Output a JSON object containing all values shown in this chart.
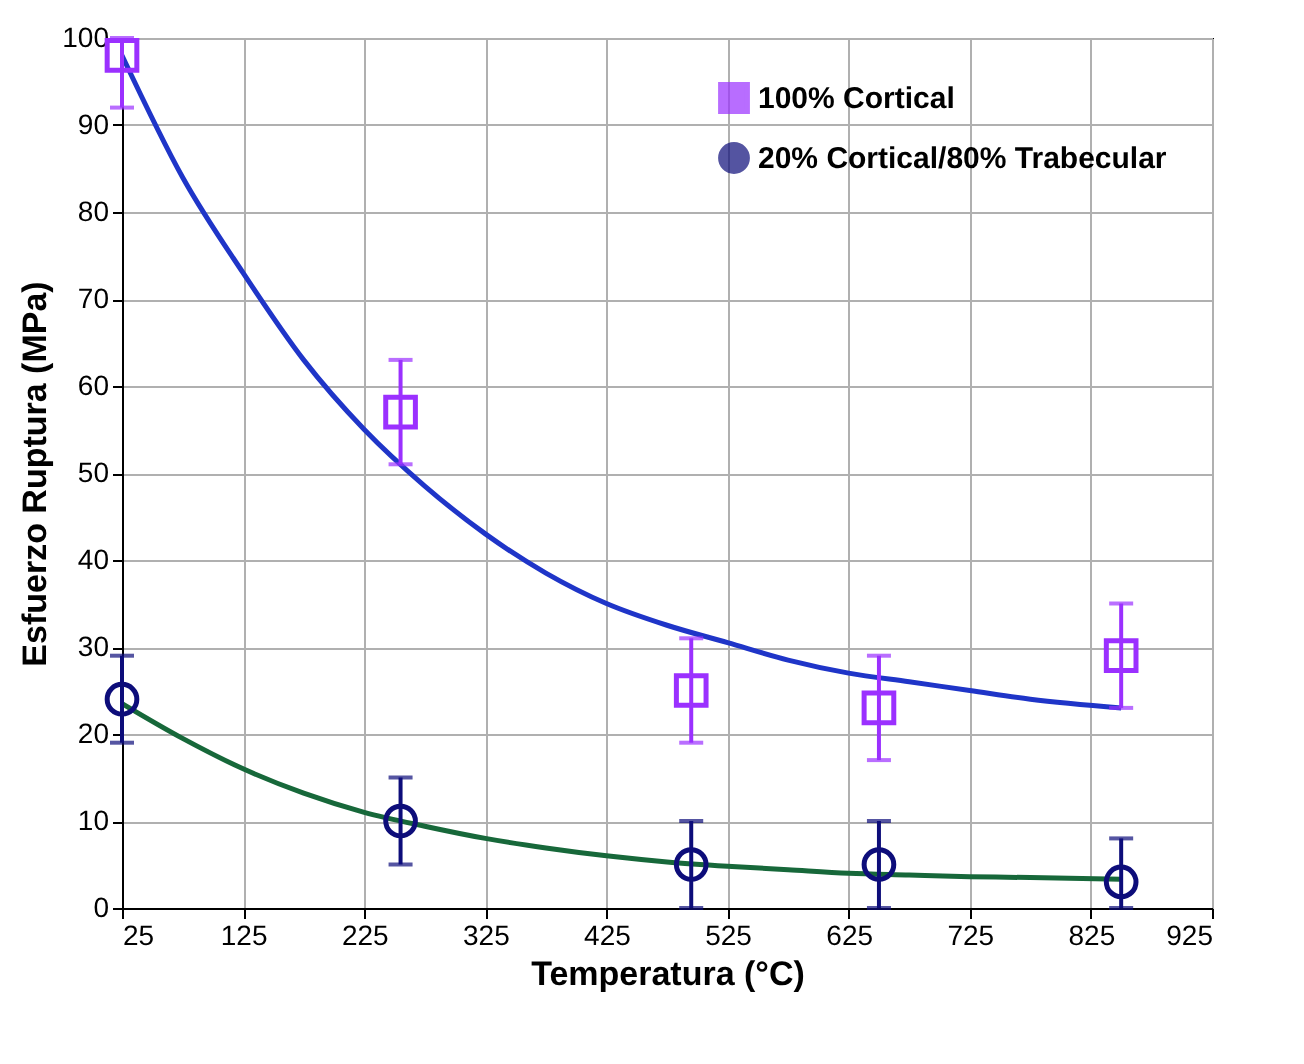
{
  "chart_data": {
    "type": "scatter",
    "xlabel": "Temperatura   (°C)",
    "ylabel": "Esfuerzo Ruptura  (MPa)",
    "xlim": [
      25,
      925
    ],
    "xticks": [
      25,
      125,
      225,
      325,
      425,
      525,
      625,
      725,
      825,
      925
    ],
    "ylim": [
      0,
      100
    ],
    "yticks": [
      0,
      10,
      20,
      30,
      40,
      50,
      60,
      70,
      80,
      90,
      100
    ],
    "grid": true,
    "legend": "top right",
    "series": [
      {
        "name": "100% Cortical",
        "color": "#9b30ff",
        "marker": "square",
        "x": [
          25,
          255,
          495,
          650,
          850
        ],
        "values": [
          98,
          57,
          25,
          23,
          29
        ],
        "errors": [
          [
            92,
            100
          ],
          [
            51,
            63
          ],
          [
            19,
            31
          ],
          [
            17,
            29
          ],
          [
            23,
            35
          ]
        ]
      },
      {
        "name": "20% Cortical/80% Trabecular",
        "color": "#0d0d7a",
        "marker": "circle",
        "x": [
          25,
          255,
          495,
          650,
          850
        ],
        "values": [
          24,
          10,
          5,
          5,
          3
        ],
        "errors": [
          [
            19,
            29
          ],
          [
            5,
            15
          ],
          [
            0,
            10
          ],
          [
            0,
            10
          ],
          [
            0,
            8
          ]
        ]
      },
      {
        "type": "line",
        "color": "#1f35c8",
        "x": [
          25,
          75,
          125,
          175,
          225,
          275,
          325,
          375,
          425,
          475,
          525,
          575,
          625,
          675,
          725,
          775,
          850
        ],
        "values": [
          98,
          84,
          73,
          63,
          55,
          48.5,
          43,
          38.5,
          35,
          32.5,
          30.5,
          28.5,
          27,
          26,
          25,
          24,
          23
        ]
      },
      {
        "type": "line",
        "color": "#17683a",
        "x": [
          25,
          75,
          125,
          175,
          225,
          275,
          325,
          375,
          425,
          475,
          525,
          575,
          625,
          675,
          725,
          775,
          850
        ],
        "values": [
          23.5,
          19.5,
          16,
          13.2,
          11,
          9.4,
          8,
          6.9,
          6,
          5.3,
          4.8,
          4.4,
          4,
          3.8,
          3.6,
          3.5,
          3.3
        ]
      }
    ]
  }
}
